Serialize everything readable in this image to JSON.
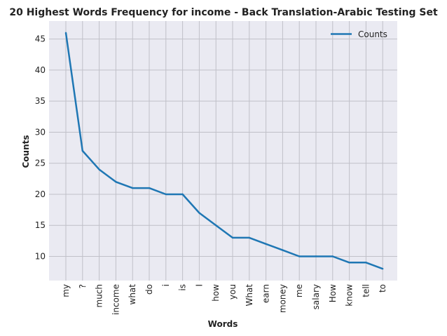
{
  "chart_data": {
    "type": "line",
    "title": "20 Highest Words Frequency for income - Back Translation-Arabic Testing Set",
    "xlabel": "Words",
    "ylabel": "Counts",
    "categories": [
      "my",
      "?",
      "much",
      "income",
      "what",
      "do",
      "i",
      "is",
      "I",
      "how",
      "you",
      "What",
      "earn",
      "money",
      "me",
      "salary",
      "How",
      "know",
      "tell",
      "to"
    ],
    "series": [
      {
        "name": "Counts",
        "values": [
          46,
          27,
          24,
          22,
          21,
          21,
          20,
          20,
          17,
          15,
          13,
          13,
          12,
          11,
          10,
          10,
          10,
          9,
          9,
          8
        ]
      }
    ],
    "yticks": [
      10,
      15,
      20,
      25,
      30,
      35,
      40,
      45
    ],
    "ylim": [
      6.1,
      47.9
    ],
    "grid": true,
    "legend_position": "top-right",
    "colors": {
      "line": "#1f77b4",
      "plot_bg": "#eaeaf2",
      "grid": "#c0c0c8"
    }
  }
}
